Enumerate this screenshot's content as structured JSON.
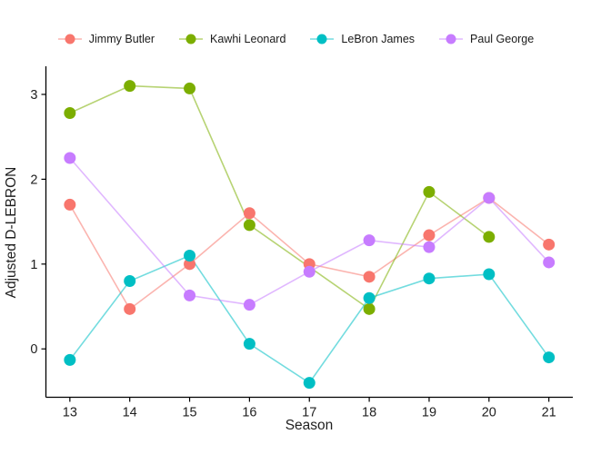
{
  "chart_data": {
    "type": "line",
    "title": "",
    "xlabel": "Season",
    "ylabel": "Adjusted D-LEBRON",
    "legend_position": "top",
    "grid": false,
    "x_ticks": [
      13,
      14,
      15,
      16,
      17,
      18,
      19,
      20,
      21
    ],
    "y_ticks": [
      0,
      1,
      2,
      3
    ],
    "xlim": [
      12.6,
      21.4
    ],
    "ylim": [
      -0.57,
      3.31
    ],
    "axis_color": "#000000",
    "series": [
      {
        "name": "Jimmy Butler",
        "color": "#F8766D",
        "x": [
          13,
          14,
          15,
          16,
          17,
          18,
          19,
          20,
          21
        ],
        "y": [
          1.7,
          0.47,
          1.0,
          1.6,
          1.0,
          0.85,
          1.34,
          1.78,
          1.23
        ]
      },
      {
        "name": "Kawhi Leonard",
        "color": "#7CAE00",
        "x": [
          13,
          14,
          15,
          16,
          18,
          19,
          20
        ],
        "y": [
          2.78,
          3.1,
          3.07,
          1.46,
          0.47,
          1.85,
          1.32
        ]
      },
      {
        "name": "LeBron James",
        "color": "#00BFC4",
        "x": [
          13,
          14,
          15,
          16,
          17,
          18,
          19,
          20,
          21
        ],
        "y": [
          -0.13,
          0.8,
          1.1,
          0.06,
          -0.4,
          0.6,
          0.83,
          0.88,
          -0.1
        ]
      },
      {
        "name": "Paul George",
        "color": "#C77CFF",
        "x": [
          13,
          15,
          16,
          17,
          18,
          19,
          20,
          21
        ],
        "y": [
          2.25,
          0.63,
          0.52,
          0.91,
          1.28,
          1.2,
          1.78,
          1.02
        ]
      }
    ]
  }
}
